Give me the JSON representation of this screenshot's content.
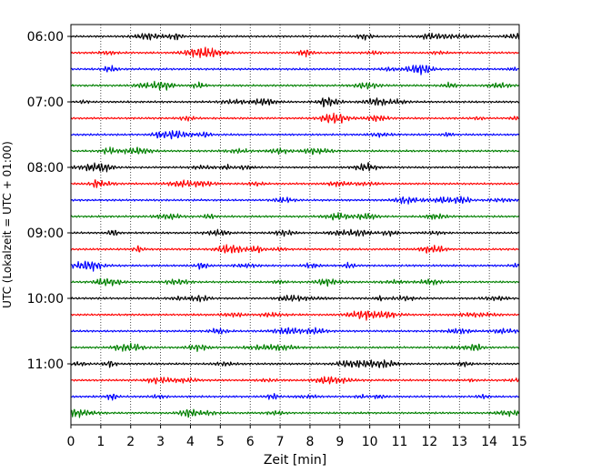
{
  "chart_data": {
    "type": "line",
    "title": "",
    "xlabel": "Zeit  [min]",
    "ylabel": "UTC (Lokalzeit = UTC + 01:00)",
    "xlim": [
      0,
      15
    ],
    "x_ticks": [
      "0",
      "1",
      "2",
      "3",
      "4",
      "5",
      "6",
      "7",
      "8",
      "9",
      "10",
      "11",
      "12",
      "13",
      "14",
      "15"
    ],
    "y_ticks": [
      "06:00",
      "07:00",
      "08:00",
      "09:00",
      "10:00",
      "11:00"
    ],
    "grid": "vertical dotted",
    "legend": "none",
    "colors": [
      "#000000",
      "#ff0000",
      "#0000ff",
      "#008000"
    ],
    "traces": [
      {
        "start": "06:00",
        "color": "#000000"
      },
      {
        "start": "06:15",
        "color": "#ff0000"
      },
      {
        "start": "06:30",
        "color": "#0000ff"
      },
      {
        "start": "06:45",
        "color": "#008000"
      },
      {
        "start": "07:00",
        "color": "#000000"
      },
      {
        "start": "07:15",
        "color": "#ff0000"
      },
      {
        "start": "07:30",
        "color": "#0000ff"
      },
      {
        "start": "07:45",
        "color": "#008000"
      },
      {
        "start": "08:00",
        "color": "#000000"
      },
      {
        "start": "08:15",
        "color": "#ff0000"
      },
      {
        "start": "08:30",
        "color": "#0000ff"
      },
      {
        "start": "08:45",
        "color": "#008000"
      },
      {
        "start": "09:00",
        "color": "#000000"
      },
      {
        "start": "09:15",
        "color": "#ff0000"
      },
      {
        "start": "09:30",
        "color": "#0000ff"
      },
      {
        "start": "09:45",
        "color": "#008000"
      },
      {
        "start": "10:00",
        "color": "#000000"
      },
      {
        "start": "10:15",
        "color": "#ff0000"
      },
      {
        "start": "10:30",
        "color": "#0000ff"
      },
      {
        "start": "10:45",
        "color": "#008000"
      },
      {
        "start": "11:00",
        "color": "#000000"
      },
      {
        "start": "11:15",
        "color": "#ff0000"
      },
      {
        "start": "11:30",
        "color": "#0000ff"
      },
      {
        "start": "11:45",
        "color": "#008000"
      }
    ]
  }
}
